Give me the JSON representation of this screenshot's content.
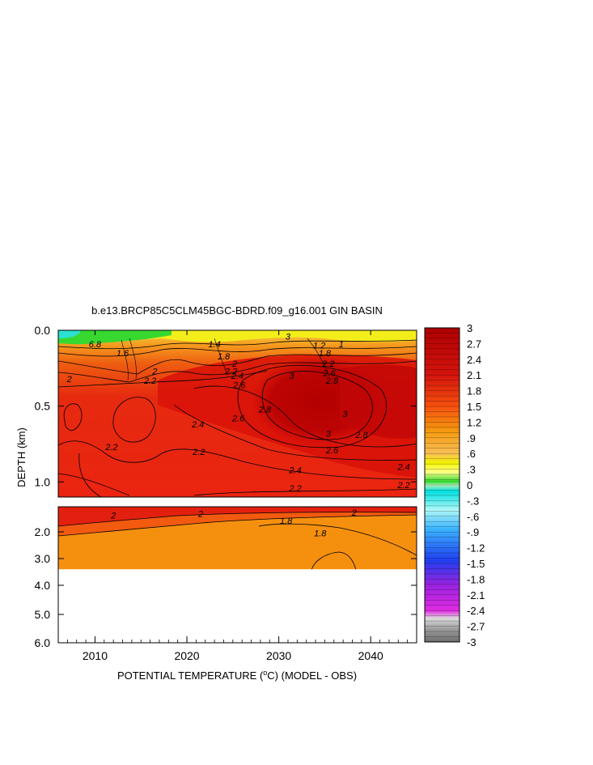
{
  "chart_data": {
    "type": "heatmap",
    "title": "b.e13.BRCP85C5CLM45BGC-BDRD.f09_g16.001 GIN BASIN",
    "xlabel_parts": [
      "POTENTIAL TEMPERATURE (",
      "o",
      "C) (MODEL - OBS)"
    ],
    "ylabel": "DEPTH (km)",
    "x_range": [
      2006,
      2045
    ],
    "x_ticks": [
      "2010",
      "2020",
      "2030",
      "2040"
    ],
    "upper_panel": {
      "depth_range_km": [
        0.0,
        1.1
      ],
      "y_ticks": [
        "0.0",
        "0.5",
        "1.0"
      ],
      "y_tick_values": [
        0.0,
        0.5,
        1.0
      ]
    },
    "lower_panel": {
      "depth_range_km": [
        1.1,
        6.0
      ],
      "y_ticks": [
        "2.0",
        "3.0",
        "4.0",
        "5.0",
        "6.0"
      ],
      "y_tick_values": [
        2.0,
        3.0,
        4.0,
        5.0,
        6.0
      ],
      "data_bottom_km": 3.4
    },
    "contour_labels": [
      {
        "text": "6.8",
        "x": 2010.0,
        "depth": 0.09
      },
      {
        "text": "1.6",
        "x": 2013.0,
        "depth": 0.15
      },
      {
        "text": "2",
        "x": 2016.5,
        "depth": 0.27
      },
      {
        "text": "2.2",
        "x": 2016.0,
        "depth": 0.33
      },
      {
        "text": "2",
        "x": 2007.2,
        "depth": 0.32
      },
      {
        "text": "1.4",
        "x": 2023.0,
        "depth": 0.09
      },
      {
        "text": "1.8",
        "x": 2024.0,
        "depth": 0.17
      },
      {
        "text": "2",
        "x": 2025.2,
        "depth": 0.22
      },
      {
        "text": "2.2",
        "x": 2024.8,
        "depth": 0.27
      },
      {
        "text": "2.4",
        "x": 2025.5,
        "depth": 0.3
      },
      {
        "text": "2.6",
        "x": 2025.7,
        "depth": 0.36
      },
      {
        "text": "3",
        "x": 2031.0,
        "depth": 0.04
      },
      {
        "text": "3",
        "x": 2031.4,
        "depth": 0.3
      },
      {
        "text": "2.8",
        "x": 2028.5,
        "depth": 0.52
      },
      {
        "text": "2.6",
        "x": 2025.6,
        "depth": 0.58
      },
      {
        "text": "2.4",
        "x": 2021.2,
        "depth": 0.62
      },
      {
        "text": "2.2",
        "x": 2011.8,
        "depth": 0.77
      },
      {
        "text": "2.2",
        "x": 2021.3,
        "depth": 0.8
      },
      {
        "text": "3",
        "x": 2035.4,
        "depth": 0.68
      },
      {
        "text": "3",
        "x": 2037.2,
        "depth": 0.55
      },
      {
        "text": "2.8",
        "x": 2039.0,
        "depth": 0.69
      },
      {
        "text": "2.6",
        "x": 2035.8,
        "depth": 0.79
      },
      {
        "text": "2.4",
        "x": 2031.8,
        "depth": 0.92
      },
      {
        "text": "2.4",
        "x": 2043.6,
        "depth": 0.9
      },
      {
        "text": "2.2",
        "x": 2031.8,
        "depth": 1.04
      },
      {
        "text": "2.2",
        "x": 2043.6,
        "depth": 1.02
      },
      {
        "text": "1.2",
        "x": 2034.4,
        "depth": 0.1
      },
      {
        "text": "1.8",
        "x": 2035.0,
        "depth": 0.15
      },
      {
        "text": "2.2",
        "x": 2035.4,
        "depth": 0.22
      },
      {
        "text": "2.6",
        "x": 2035.5,
        "depth": 0.28
      },
      {
        "text": "2.8",
        "x": 2035.8,
        "depth": 0.33
      },
      {
        "text": "1",
        "x": 2036.8,
        "depth": 0.09
      },
      {
        "text": "2",
        "x": 2012.0,
        "depth": 1.4
      },
      {
        "text": "2",
        "x": 2021.5,
        "depth": 1.35
      },
      {
        "text": "2",
        "x": 2038.2,
        "depth": 1.3
      },
      {
        "text": "1.8",
        "x": 2030.8,
        "depth": 1.6
      },
      {
        "text": "1.8",
        "x": 2034.5,
        "depth": 2.05
      }
    ],
    "colorbar": {
      "labels": [
        "3",
        "2.7",
        "2.4",
        "2.1",
        "1.8",
        "1.5",
        "1.2",
        ".9",
        ".6",
        ".3",
        "0",
        "-.3",
        "-.6",
        "-.9",
        "-1.2",
        "-1.5",
        "-1.8",
        "-2.1",
        "-2.4",
        "-2.7",
        "-3"
      ],
      "values": [
        3.0,
        2.7,
        2.4,
        2.1,
        1.8,
        1.5,
        1.2,
        0.9,
        0.6,
        0.3,
        0.0,
        -0.3,
        -0.6,
        -0.9,
        -1.2,
        -1.5,
        -1.8,
        -2.1,
        -2.4,
        -2.7,
        -3.0
      ],
      "range": [
        -3,
        3
      ],
      "colors": {
        "top": "#ad0000",
        "red": "#e61b10",
        "orange_red": "#f5500d",
        "orange": "#f59a10",
        "light_orange": "#f8be55",
        "yellow": "#f4f400",
        "green": "#2ad52a",
        "cyan": "#00e0e0",
        "light_blue": "#3cb4ff",
        "blue": "#1f3ff0",
        "purple": "#9b22e0",
        "magenta": "#e12be1",
        "light_gray": "#dcdcdc",
        "gray": "#9a9a9a",
        "dark_gray": "#6e6e6e"
      }
    }
  }
}
